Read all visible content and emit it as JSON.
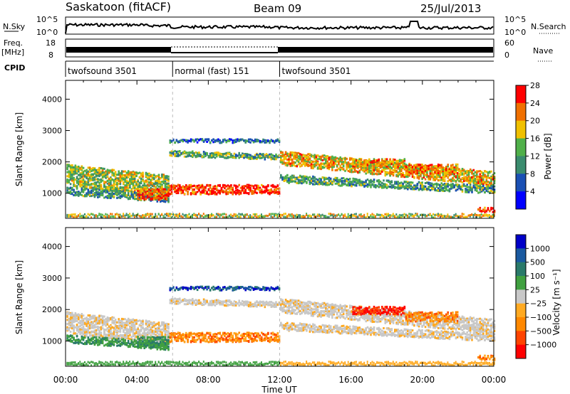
{
  "header": {
    "station": "Saskatoon (fitACF)",
    "beam": "Beam 09",
    "date": "25/Jul/2013"
  },
  "nsky": {
    "label": "N.Sky",
    "ticks": [
      "10^5",
      "10^0"
    ],
    "right_label": "N.Search",
    "right_ticks": [
      "10^5",
      "10^0"
    ]
  },
  "freq": {
    "label_top": "Freq.",
    "label_unit": "[MHz]",
    "ticks": [
      "18",
      "8"
    ],
    "right_label": "Nave",
    "right_ticks": [
      "60",
      "0"
    ]
  },
  "cpid": {
    "label": "CPID",
    "segments": [
      {
        "name": "twofsound 3501",
        "start": 0,
        "end": 6
      },
      {
        "name": "normal (fast) 151",
        "start": 6,
        "end": 12
      },
      {
        "name": "twofsound 3501",
        "start": 12,
        "end": 24
      }
    ]
  },
  "colors": {
    "power": [
      "#0000ff",
      "#1a50b4",
      "#3a8c6e",
      "#50b04a",
      "#f0c000",
      "#f07000",
      "#ff0000"
    ],
    "velocity": [
      "#ff0000",
      "#ff4400",
      "#ff8800",
      "#ffaa22",
      "#c8c8c8",
      "#40a040",
      "#2a7a6a",
      "#1a5aa0",
      "#0000c8"
    ]
  },
  "chart_data": [
    {
      "type": "heatmap",
      "name_key": "power",
      "ylabel": "Slant Range [km]",
      "ylim": [
        200,
        4600
      ],
      "yticks": [
        1000,
        2000,
        3000,
        4000
      ],
      "xlim": [
        0,
        24
      ],
      "colorbar_label": "Power [dB]",
      "colorbar_ticks": [
        "4",
        "8",
        "12",
        "16",
        "20",
        "24",
        "28"
      ],
      "colorbar_range": [
        0,
        32
      ]
    },
    {
      "type": "heatmap",
      "name_key": "velocity",
      "ylabel": "Slant Range [km]",
      "ylim": [
        200,
        4600
      ],
      "yticks": [
        1000,
        2000,
        3000,
        4000
      ],
      "xlim": [
        0,
        24
      ],
      "xlabel": "Time UT",
      "xticks": [
        "00:00",
        "04:00",
        "08:00",
        "12:00",
        "16:00",
        "20:00",
        "00:00"
      ],
      "colorbar_label": "Velocity [m s⁻¹]",
      "colorbar_ticks": [
        "1000",
        "500",
        "100",
        "25",
        "−25",
        "−100",
        "−500",
        "−1000"
      ]
    }
  ]
}
